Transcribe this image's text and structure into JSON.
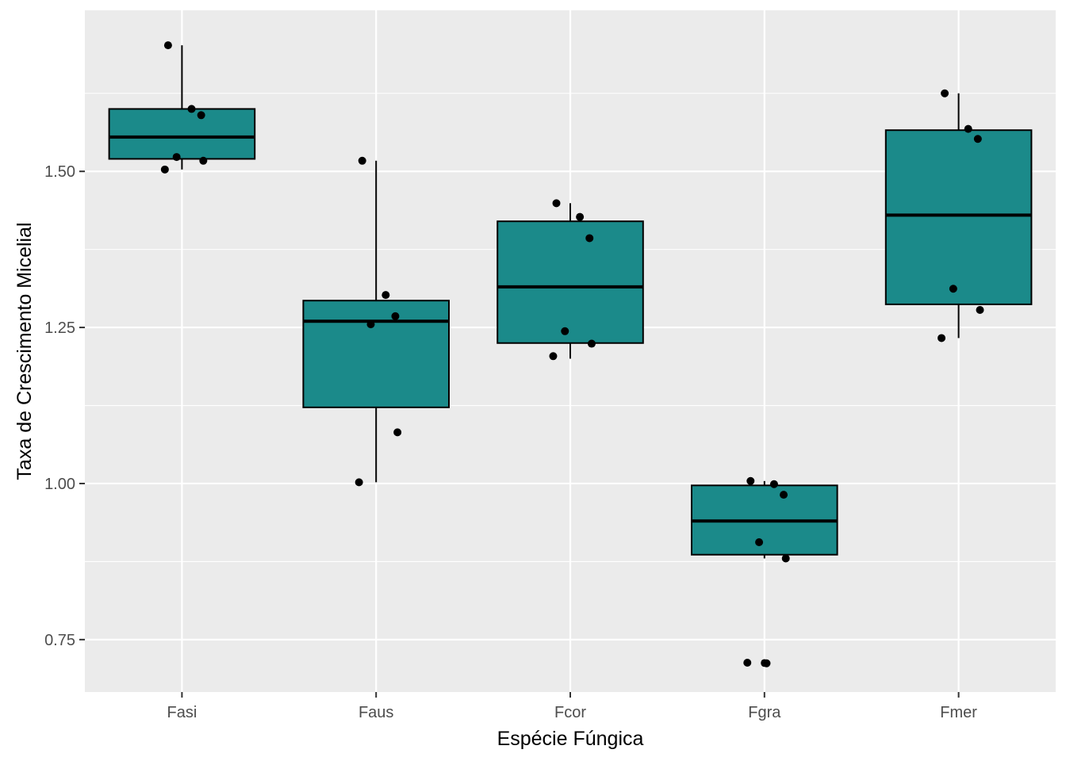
{
  "chart_data": {
    "type": "box",
    "xlabel": "Espécie Fúngica",
    "ylabel": "Taxa de Crescimento Micelial",
    "categories": [
      "Fasi",
      "Faus",
      "Fcor",
      "Fgra",
      "Fmer"
    ],
    "y_ticks": [
      0.75,
      1.0,
      1.25,
      1.5
    ],
    "y_tick_labels": [
      "0.75",
      "1.00",
      "1.25",
      "1.50"
    ],
    "ylim": [
      0.666,
      1.758
    ],
    "grid": true,
    "boxes": [
      {
        "category": "Fasi",
        "whisker_low": 1.503,
        "q1": 1.52,
        "median": 1.555,
        "q3": 1.6,
        "whisker_high": 1.702,
        "outliers": []
      },
      {
        "category": "Faus",
        "whisker_low": 1.002,
        "q1": 1.122,
        "median": 1.26,
        "q3": 1.293,
        "whisker_high": 1.517,
        "outliers": []
      },
      {
        "category": "Fcor",
        "whisker_low": 1.2,
        "q1": 1.225,
        "median": 1.315,
        "q3": 1.42,
        "whisker_high": 1.449,
        "outliers": []
      },
      {
        "category": "Fgra",
        "whisker_low": 0.88,
        "q1": 0.886,
        "median": 0.94,
        "q3": 0.997,
        "whisker_high": 1.004,
        "outliers": [
          0.712,
          0.713
        ]
      },
      {
        "category": "Fmer",
        "whisker_low": 1.233,
        "q1": 1.287,
        "median": 1.43,
        "q3": 1.566,
        "whisker_high": 1.625,
        "outliers": []
      }
    ],
    "points": [
      {
        "category": "Fasi",
        "y": 1.702
      },
      {
        "category": "Fasi",
        "y": 1.6
      },
      {
        "category": "Fasi",
        "y": 1.59
      },
      {
        "category": "Fasi",
        "y": 1.523
      },
      {
        "category": "Fasi",
        "y": 1.517
      },
      {
        "category": "Fasi",
        "y": 1.503
      },
      {
        "category": "Faus",
        "y": 1.517
      },
      {
        "category": "Faus",
        "y": 1.302
      },
      {
        "category": "Faus",
        "y": 1.268
      },
      {
        "category": "Faus",
        "y": 1.255
      },
      {
        "category": "Faus",
        "y": 1.082
      },
      {
        "category": "Faus",
        "y": 1.002
      },
      {
        "category": "Fcor",
        "y": 1.449
      },
      {
        "category": "Fcor",
        "y": 1.427
      },
      {
        "category": "Fcor",
        "y": 1.393
      },
      {
        "category": "Fcor",
        "y": 1.244
      },
      {
        "category": "Fcor",
        "y": 1.224
      },
      {
        "category": "Fcor",
        "y": 1.204
      },
      {
        "category": "Fgra",
        "y": 1.004
      },
      {
        "category": "Fgra",
        "y": 0.999
      },
      {
        "category": "Fgra",
        "y": 0.982
      },
      {
        "category": "Fgra",
        "y": 0.906
      },
      {
        "category": "Fgra",
        "y": 0.88
      },
      {
        "category": "Fgra",
        "y": 0.713
      },
      {
        "category": "Fgra",
        "y": 0.712
      },
      {
        "category": "Fmer",
        "y": 1.625
      },
      {
        "category": "Fmer",
        "y": 1.568
      },
      {
        "category": "Fmer",
        "y": 1.552
      },
      {
        "category": "Fmer",
        "y": 1.312
      },
      {
        "category": "Fmer",
        "y": 1.278
      },
      {
        "category": "Fmer",
        "y": 1.233
      }
    ],
    "colors": {
      "box_fill": "#1b8a8a",
      "panel": "#ebebeb",
      "grid": "#ffffff",
      "point": "#000000"
    }
  }
}
